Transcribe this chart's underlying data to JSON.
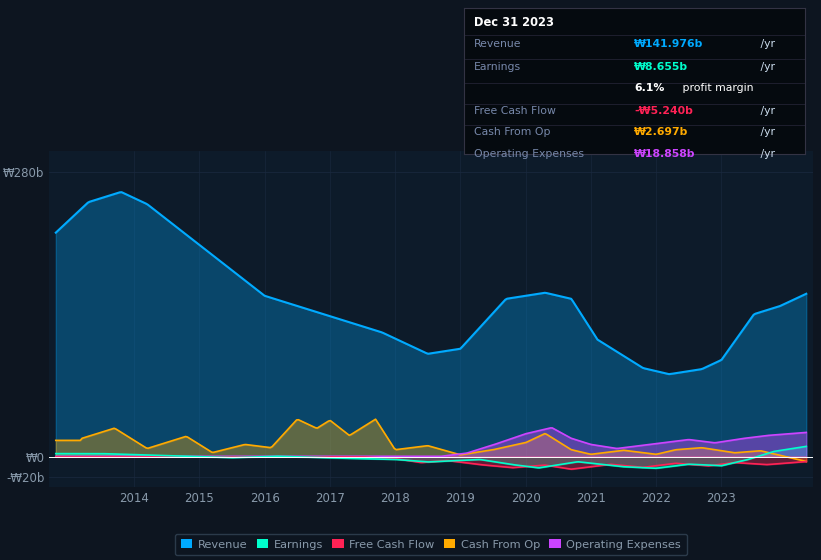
{
  "bg_color": "#0d1520",
  "chart_bg": "#0d1b2a",
  "grid_color": "#1a2a40",
  "text_color": "#8899aa",
  "ylim": [
    -30,
    300
  ],
  "xlim": [
    2012.7,
    2024.4
  ],
  "y_label_top": "₩280b",
  "y_label_zero": "₩0",
  "y_label_neg": "-₩20b",
  "revenue_color": "#00aaff",
  "earnings_color": "#00ffcc",
  "fcf_color": "#ff2255",
  "cashop_color": "#ffaa00",
  "opex_color": "#cc44ff",
  "info_box": {
    "date": "Dec 31 2023",
    "revenue_label": "Revenue",
    "revenue_value": "₩141.976b",
    "revenue_color": "#00aaff",
    "earnings_label": "Earnings",
    "earnings_value": "₩8.655b",
    "earnings_color": "#00ffcc",
    "profit_margin": "6.1%",
    "profit_margin_label": " profit margin",
    "fcf_label": "Free Cash Flow",
    "fcf_value": "-₩5.240b",
    "fcf_color": "#ff2255",
    "cashop_label": "Cash From Op",
    "cashop_value": "₩2.697b",
    "cashop_color": "#ffaa00",
    "opex_label": "Operating Expenses",
    "opex_value": "₩18.858b",
    "opex_color": "#cc44ff"
  },
  "legend": [
    {
      "label": "Revenue",
      "color": "#00aaff"
    },
    {
      "label": "Earnings",
      "color": "#00ffcc"
    },
    {
      "label": "Free Cash Flow",
      "color": "#ff2255"
    },
    {
      "label": "Cash From Op",
      "color": "#ffaa00"
    },
    {
      "label": "Operating Expenses",
      "color": "#cc44ff"
    }
  ]
}
